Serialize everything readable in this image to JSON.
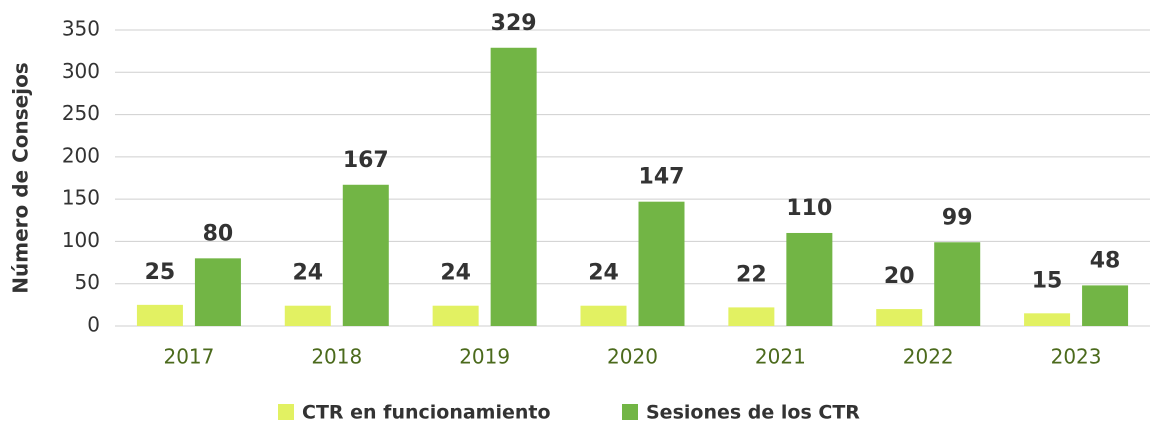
{
  "chart_data": {
    "type": "bar",
    "y_label": "Número de Consejos",
    "categories": [
      "2017",
      "2018",
      "2019",
      "2020",
      "2021",
      "2022",
      "2023"
    ],
    "series": [
      {
        "name": "CTR en funcionamiento",
        "color": "#e2f162",
        "values": [
          25,
          24,
          24,
          24,
          22,
          20,
          15
        ]
      },
      {
        "name": "Sesiones de los CTR",
        "color": "#72b545",
        "values": [
          80,
          167,
          329,
          147,
          110,
          99,
          48
        ]
      }
    ],
    "ylim": [
      0,
      350
    ],
    "yticks": [
      0,
      50,
      100,
      150,
      200,
      250,
      300,
      350
    ],
    "grid": true,
    "legend": "bottom"
  }
}
